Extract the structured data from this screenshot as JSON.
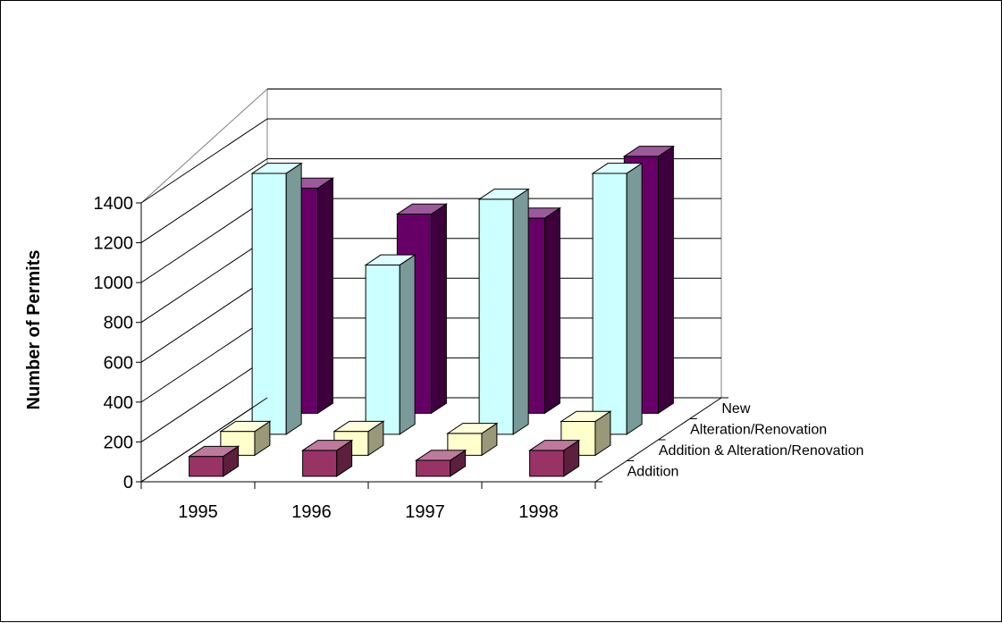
{
  "chart_data": {
    "type": "bar",
    "subtype": "3d-column",
    "title": "",
    "xlabel": "",
    "ylabel": "Number of Permits",
    "ylim": [
      0,
      1400
    ],
    "yticks": [
      "0",
      "200",
      "400",
      "600",
      "800",
      "1000",
      "1200",
      "1400"
    ],
    "categories": [
      "1995",
      "1996",
      "1997",
      "1998"
    ],
    "grid": true,
    "legend": "none (series labels on depth axis)",
    "series": [
      {
        "name": "Addition",
        "color": "#993366",
        "values": [
          100,
          130,
          80,
          130
        ]
      },
      {
        "name": "Addition & Alteration/Renovation",
        "color": "#FFFFCC",
        "values": [
          120,
          120,
          110,
          170
        ]
      },
      {
        "name": "Alteration/Renovation",
        "color": "#CCFFFF",
        "values": [
          1310,
          850,
          1180,
          1310
        ]
      },
      {
        "name": "New",
        "color": "#660066",
        "values": [
          1130,
          1000,
          980,
          1290
        ]
      }
    ]
  }
}
